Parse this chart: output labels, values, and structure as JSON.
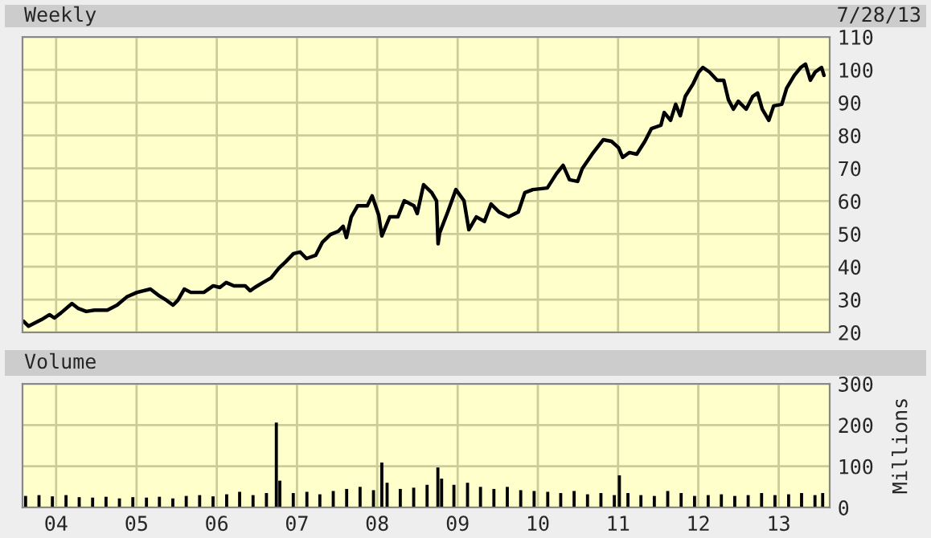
{
  "chart_data": [
    {
      "type": "line",
      "title": "Weekly",
      "annotations": [
        "7/28/13"
      ],
      "tick_labels": "y",
      "grid": true,
      "legend": false,
      "xlim": [
        "2003-08-01",
        "2013-08-21"
      ],
      "xticks": [
        {
          "value": "2004-01-01",
          "label": null
        },
        {
          "value": "2005-01-01",
          "label": null
        },
        {
          "value": "2006-01-01",
          "label": null
        },
        {
          "value": "2007-01-01",
          "label": null
        },
        {
          "value": "2008-01-01",
          "label": null
        },
        {
          "value": "2009-01-01",
          "label": null
        },
        {
          "value": "2010-01-01",
          "label": null
        },
        {
          "value": "2011-01-01",
          "label": null
        },
        {
          "value": "2012-01-01",
          "label": null
        },
        {
          "value": "2013-01-01",
          "label": null
        }
      ],
      "ylim": [
        20,
        110
      ],
      "yticks": [
        20,
        30,
        40,
        50,
        60,
        70,
        80,
        90,
        100,
        110
      ],
      "series": [
        {
          "color": "#000000",
          "x": [
            "2003-08-06",
            "2003-08-28",
            "2003-10-26",
            "2003-12-02",
            "2003-12-24",
            "2004-01-22",
            "2004-03-13",
            "2004-04-11",
            "2004-05-17",
            "2004-06-23",
            "2004-08-21",
            "2004-10-04",
            "2004-11-17",
            "2005-01-03",
            "2005-03-05",
            "2005-04-11",
            "2005-05-17",
            "2005-06-16",
            "2005-07-08",
            "2005-08-06",
            "2005-09-05",
            "2005-11-03",
            "2005-12-16",
            "2006-01-15",
            "2006-02-13",
            "2006-03-20",
            "2006-05-10",
            "2006-06-02",
            "2006-06-23",
            "2006-07-30",
            "2006-09-05",
            "2006-10-11",
            "2006-11-10",
            "2006-12-16",
            "2007-01-15",
            "2007-02-13",
            "2007-03-27",
            "2007-04-26",
            "2007-06-02",
            "2007-07-08",
            "2007-07-30",
            "2007-08-14",
            "2007-09-05",
            "2007-10-04",
            "2007-11-17",
            "2007-12-09",
            "2008-01-08",
            "2008-01-22",
            "2008-02-27",
            "2008-04-04",
            "2008-05-03",
            "2008-06-16",
            "2008-07-01",
            "2008-07-30",
            "2008-09-05",
            "2008-09-27",
            "2008-10-04",
            "2008-10-11",
            "2008-11-17",
            "2008-12-24",
            "2009-01-30",
            "2009-02-21",
            "2009-03-27",
            "2009-05-03",
            "2009-06-02",
            "2009-07-08",
            "2009-08-21",
            "2009-10-04",
            "2009-11-03",
            "2009-12-09",
            "2010-02-13",
            "2010-03-27",
            "2010-04-26",
            "2010-05-25",
            "2010-07-01",
            "2010-07-22",
            "2010-09-05",
            "2010-10-26",
            "2010-12-02",
            "2011-01-03",
            "2011-01-22",
            "2011-02-21",
            "2011-03-27",
            "2011-05-03",
            "2011-06-02",
            "2011-07-15",
            "2011-07-30",
            "2011-08-28",
            "2011-09-20",
            "2011-10-11",
            "2011-11-03",
            "2011-12-09",
            "2012-01-03",
            "2012-01-22",
            "2012-02-21",
            "2012-03-27",
            "2012-04-26",
            "2012-05-17",
            "2012-06-09",
            "2012-07-01",
            "2012-08-06",
            "2012-09-05",
            "2012-09-27",
            "2012-10-18",
            "2012-11-17",
            "2012-12-09",
            "2013-01-15",
            "2013-02-06",
            "2013-03-13",
            "2013-04-11",
            "2013-05-03",
            "2013-05-25",
            "2013-06-16",
            "2013-07-15",
            "2013-07-26"
          ],
          "values": [
            23.4,
            21.9,
            23.9,
            25.4,
            24.4,
            25.9,
            28.8,
            27.3,
            26.4,
            26.8,
            26.8,
            28.3,
            30.8,
            32.2,
            33.2,
            31.3,
            29.8,
            28.3,
            29.8,
            33.2,
            32.2,
            32.2,
            34.2,
            33.7,
            35.2,
            34.2,
            34.2,
            32.7,
            33.7,
            35.2,
            36.6,
            39.6,
            41.5,
            44.0,
            44.5,
            42.5,
            43.5,
            47.4,
            49.8,
            50.8,
            52.3,
            48.9,
            55.2,
            58.6,
            58.6,
            61.6,
            55.7,
            49.4,
            55.2,
            55.2,
            60.1,
            58.6,
            56.2,
            65.0,
            62.6,
            60.1,
            47.0,
            50.3,
            56.7,
            63.5,
            60.1,
            51.3,
            55.2,
            53.8,
            59.1,
            56.7,
            55.2,
            56.7,
            62.6,
            63.5,
            64.0,
            68.4,
            70.9,
            66.5,
            66.0,
            69.9,
            74.3,
            78.7,
            78.2,
            76.3,
            73.3,
            74.8,
            74.3,
            78.2,
            82.1,
            83.1,
            87.0,
            84.6,
            89.5,
            86.0,
            91.9,
            95.8,
            99.3,
            100.7,
            99.3,
            96.8,
            96.8,
            90.9,
            88.0,
            90.4,
            88.0,
            91.9,
            92.9,
            88.0,
            84.6,
            89.0,
            89.5,
            94.4,
            98.3,
            100.7,
            101.7,
            96.8,
            99.3,
            100.7,
            98.3
          ]
        }
      ]
    },
    {
      "type": "bar",
      "title": "Volume",
      "ylabel": "Millions",
      "grid": true,
      "legend": false,
      "xlim": [
        "2003-08-01",
        "2013-08-21"
      ],
      "xticks": [
        {
          "value": "2004-01-01",
          "label": "04"
        },
        {
          "value": "2005-01-01",
          "label": "05"
        },
        {
          "value": "2006-01-01",
          "label": "06"
        },
        {
          "value": "2007-01-01",
          "label": "07"
        },
        {
          "value": "2008-01-01",
          "label": "08"
        },
        {
          "value": "2009-01-01",
          "label": "09"
        },
        {
          "value": "2010-01-01",
          "label": "10"
        },
        {
          "value": "2011-01-01",
          "label": "11"
        },
        {
          "value": "2012-01-01",
          "label": "12"
        },
        {
          "value": "2013-01-01",
          "label": "13"
        }
      ],
      "ylim": [
        0,
        300
      ],
      "yticks": [
        0,
        100,
        200,
        300
      ],
      "series": [
        {
          "color": "#000000",
          "x": [
            "2003-08-15",
            "2003-10-15",
            "2003-12-15",
            "2004-02-15",
            "2004-04-15",
            "2004-06-15",
            "2004-08-15",
            "2004-10-15",
            "2004-12-15",
            "2005-02-15",
            "2005-04-15",
            "2005-06-15",
            "2005-08-15",
            "2005-10-15",
            "2005-12-15",
            "2006-02-15",
            "2006-04-15",
            "2006-06-15",
            "2006-08-15",
            "2006-09-29",
            "2006-10-15",
            "2006-12-15",
            "2007-02-15",
            "2007-04-15",
            "2007-06-15",
            "2007-08-15",
            "2007-10-15",
            "2007-12-15",
            "2008-01-22",
            "2008-02-15",
            "2008-04-15",
            "2008-06-15",
            "2008-08-15",
            "2008-10-03",
            "2008-10-20",
            "2008-12-15",
            "2009-02-15",
            "2009-04-15",
            "2009-06-15",
            "2009-08-15",
            "2009-10-15",
            "2009-12-15",
            "2010-02-15",
            "2010-04-15",
            "2010-06-15",
            "2010-08-15",
            "2010-10-15",
            "2010-12-15",
            "2011-01-07",
            "2011-02-15",
            "2011-04-15",
            "2011-06-15",
            "2011-08-15",
            "2011-10-15",
            "2011-12-15",
            "2012-02-15",
            "2012-04-15",
            "2012-06-15",
            "2012-08-15",
            "2012-10-15",
            "2012-12-15",
            "2013-02-15",
            "2013-04-15",
            "2013-06-15",
            "2013-07-20"
          ],
          "values": [
            28,
            30,
            27,
            30,
            25,
            24,
            26,
            22,
            25,
            24,
            26,
            22,
            28,
            30,
            27,
            32,
            38,
            30,
            35,
            206,
            65,
            35,
            38,
            32,
            40,
            45,
            50,
            42,
            109,
            60,
            45,
            48,
            55,
            97,
            70,
            55,
            60,
            50,
            45,
            50,
            42,
            40,
            38,
            35,
            40,
            32,
            35,
            30,
            78,
            35,
            30,
            28,
            40,
            35,
            28,
            30,
            32,
            28,
            30,
            35,
            30,
            32,
            35,
            30,
            35
          ]
        }
      ]
    }
  ]
}
